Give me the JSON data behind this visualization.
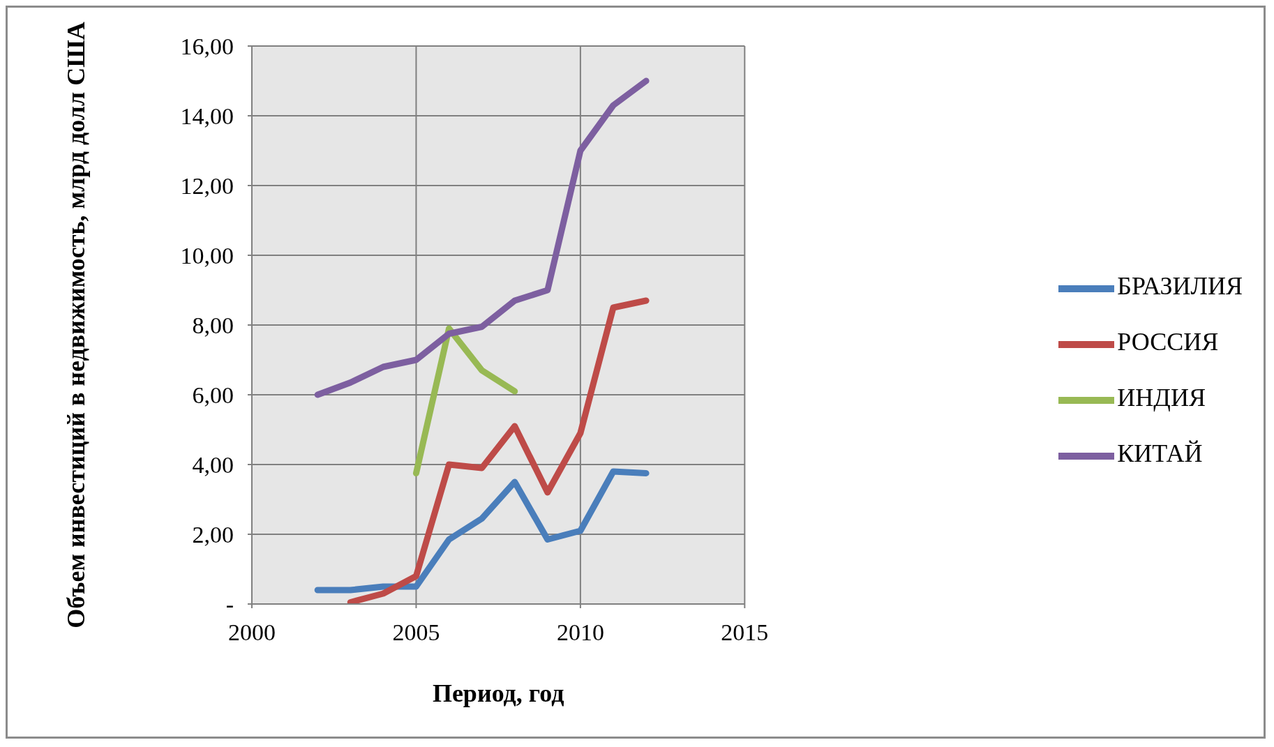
{
  "chart_data": {
    "type": "line",
    "xlabel": "Период, год",
    "ylabel": "Объем инвестиций в недвижимость, млрд долл США",
    "x": [
      2002,
      2003,
      2004,
      2005,
      2006,
      2007,
      2008,
      2009,
      2010,
      2011,
      2012
    ],
    "series": [
      {
        "name": "БРАЗИЛИЯ",
        "color": "#4a7ebb",
        "values": [
          0.4,
          0.4,
          0.5,
          0.5,
          1.85,
          2.45,
          3.5,
          1.85,
          2.1,
          3.8,
          3.75
        ]
      },
      {
        "name": "РОССИЯ",
        "color": "#be4b48",
        "values": [
          null,
          0.05,
          0.3,
          0.8,
          4.0,
          3.9,
          5.1,
          3.2,
          4.9,
          8.5,
          8.7
        ]
      },
      {
        "name": "ИНДИЯ",
        "color": "#98b954",
        "values": [
          null,
          null,
          null,
          3.75,
          7.9,
          6.7,
          6.1,
          null,
          null,
          null,
          null
        ]
      },
      {
        "name": "КИТАЙ",
        "color": "#7d5fa0",
        "values": [
          6.0,
          6.35,
          6.8,
          7.0,
          7.75,
          7.95,
          8.7,
          9.0,
          13.0,
          14.3,
          15.0
        ]
      }
    ],
    "xlim": [
      2000,
      2015
    ],
    "xticks": [
      2000,
      2005,
      2010,
      2015
    ],
    "ylim": [
      0,
      16
    ],
    "yticks": [
      {
        "value": 0,
        "label": "-"
      },
      {
        "value": 2,
        "label": "2,00"
      },
      {
        "value": 4,
        "label": "4,00"
      },
      {
        "value": 6,
        "label": "6,00"
      },
      {
        "value": 8,
        "label": "8,00"
      },
      {
        "value": 10,
        "label": "10,00"
      },
      {
        "value": 12,
        "label": "12,00"
      },
      {
        "value": 14,
        "label": "14,00"
      },
      {
        "value": 16,
        "label": "16,00"
      }
    ],
    "grid": true,
    "legend": "right",
    "marker": "none",
    "line_style": "solid"
  }
}
